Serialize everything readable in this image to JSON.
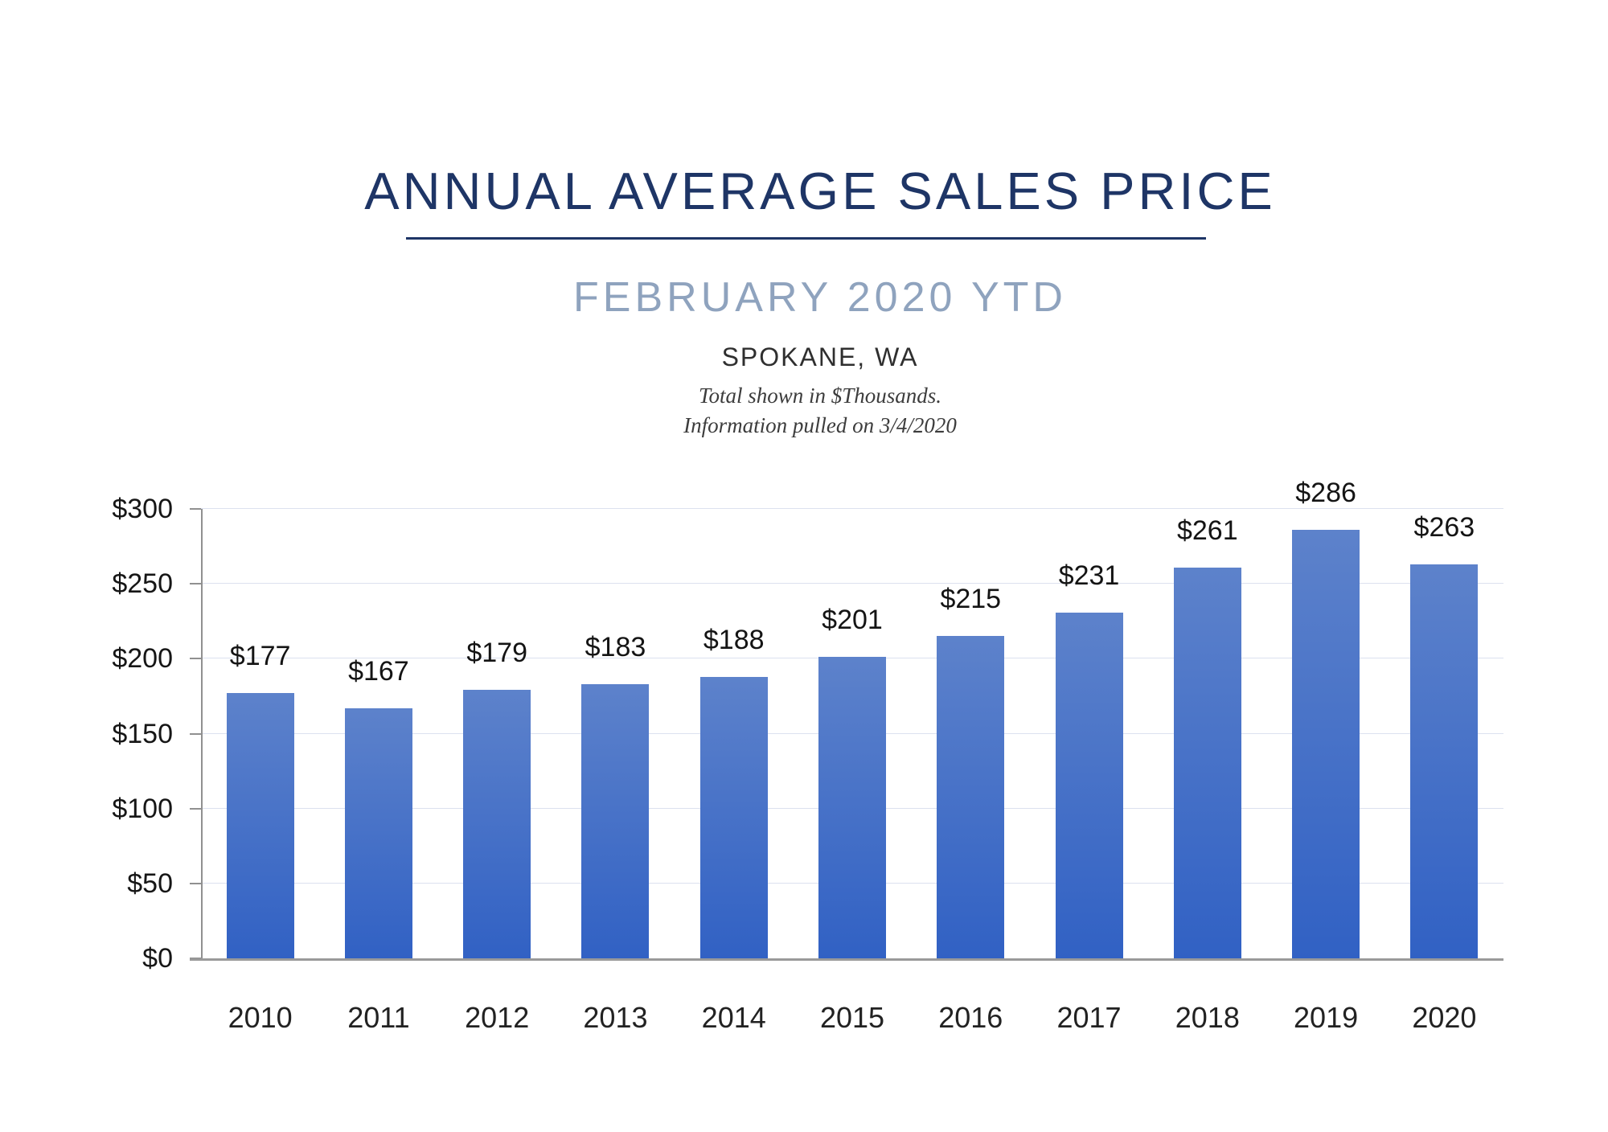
{
  "header": {
    "title": "ANNUAL AVERAGE SALES PRICE",
    "subtitle": "FEBRUARY 2020 YTD",
    "location": "SPOKANE, WA",
    "note_line1": "Total shown in $Thousands.",
    "note_line2": "Information pulled on 3/4/2020"
  },
  "colors": {
    "title": "#1e3566",
    "title_underline": "#1e3566",
    "subtitle": "#8fa3be",
    "location": "#2f2f2f",
    "note": "#3c3c3c",
    "bar_gradient_top": "#5d82cb",
    "bar_gradient_bottom": "#3161c4",
    "gridline": "#dce1ef",
    "axis_line": "#909090",
    "bottom_axis_line": "#9a9a9a",
    "tick_label": "#161616",
    "value_label": "#141414",
    "x_label": "#222222"
  },
  "chart_data": {
    "type": "bar",
    "title": "ANNUAL AVERAGE SALES PRICE",
    "subtitle": "FEBRUARY 2020 YTD",
    "region": "SPOKANE, WA",
    "units_note": "Total shown in $Thousands.",
    "pulled_note": "Information pulled on 3/4/2020",
    "categories": [
      "2010",
      "2011",
      "2012",
      "2013",
      "2014",
      "2015",
      "2016",
      "2017",
      "2018",
      "2019",
      "2020"
    ],
    "values": [
      177,
      167,
      179,
      183,
      188,
      201,
      215,
      231,
      261,
      286,
      263
    ],
    "value_labels": [
      "$177",
      "$167",
      "$179",
      "$183",
      "$188",
      "$201",
      "$215",
      "$231",
      "$261",
      "$286",
      "$263"
    ],
    "xlabel": "",
    "ylabel": "",
    "ylim": [
      0,
      300
    ],
    "ytick_step": 50,
    "ytick_labels": [
      "$0",
      "$50",
      "$100",
      "$150",
      "$200",
      "$250",
      "$300"
    ],
    "grid": true,
    "legend": false
  }
}
